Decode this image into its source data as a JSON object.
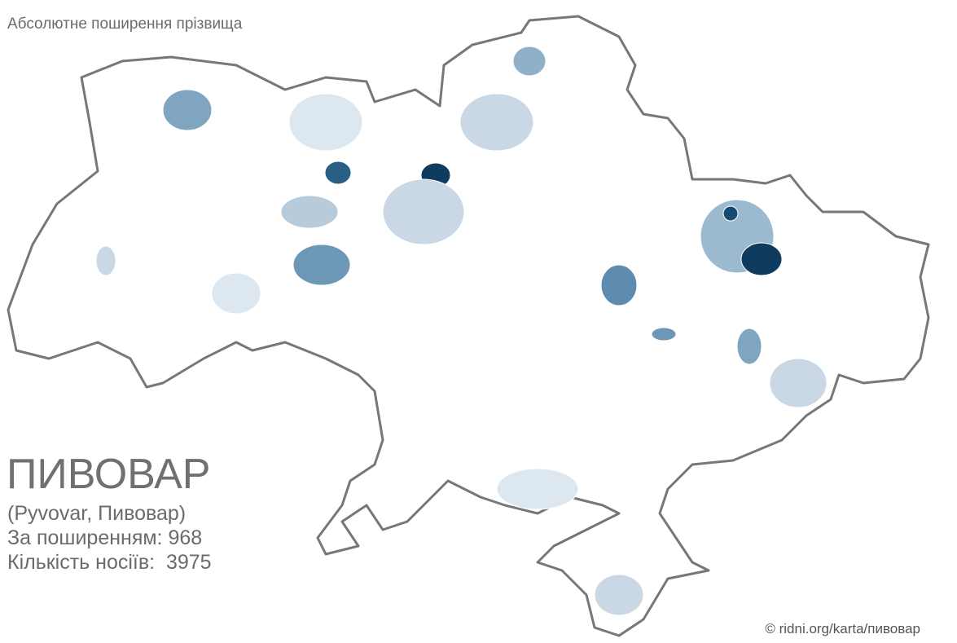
{
  "header": {
    "title": "Абсолютне поширення прізвища"
  },
  "surname": {
    "name": "ПИВОВАР",
    "variants": "(Pyvovar, Пивовар)",
    "rank": "За поширенням: 968",
    "count": "Кількість носіїв:  3975"
  },
  "footer": {
    "credit": "© ridni.org/karta/пивовар"
  }
}
